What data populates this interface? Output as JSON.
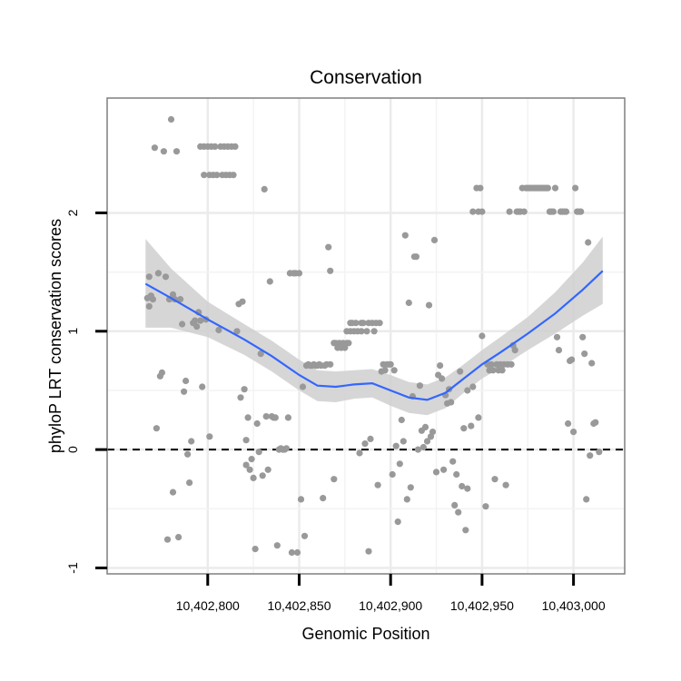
{
  "chart_data": {
    "type": "scatter",
    "title": "Conservation",
    "xlabel": "Genomic Position",
    "ylabel": "phyloP LRT conservation scores",
    "xlim": [
      10402745,
      10403028
    ],
    "ylim": [
      -1.05,
      2.97
    ],
    "x_ticks": [
      10402800,
      10402850,
      10402900,
      10402950,
      10403000
    ],
    "x_tick_labels": [
      "10,402,800",
      "10,402,850",
      "10,402,900",
      "10,402,950",
      "10,403,000"
    ],
    "y_ticks": [
      -1,
      0,
      1,
      2
    ],
    "y_tick_labels": [
      "-1",
      "0",
      "1",
      "2"
    ],
    "reference_line": {
      "y": 0,
      "style": "dashed"
    },
    "colors": {
      "points": "#999999",
      "smooth": "#3366FF",
      "ribbon": "#cfcfcf",
      "grid": "#ebebeb",
      "panel_border": "#7f7f7f",
      "ticks": "#000000"
    },
    "points": [
      [
        10402767,
        1.28
      ],
      [
        10402768,
        1.21
      ],
      [
        10402768,
        1.46
      ],
      [
        10402769,
        1.3
      ],
      [
        10402770,
        1.27
      ],
      [
        10402771,
        2.55
      ],
      [
        10402772,
        0.18
      ],
      [
        10402773,
        1.49
      ],
      [
        10402774,
        0.62
      ],
      [
        10402775,
        0.65
      ],
      [
        10402776,
        2.52
      ],
      [
        10402777,
        1.46
      ],
      [
        10402778,
        -0.76
      ],
      [
        10402779,
        1.27
      ],
      [
        10402780,
        2.79
      ],
      [
        10402781,
        1.31
      ],
      [
        10402781,
        -0.36
      ],
      [
        10402782,
        1.27
      ],
      [
        10402783,
        2.52
      ],
      [
        10402784,
        -0.74
      ],
      [
        10402785,
        1.27
      ],
      [
        10402786,
        1.06
      ],
      [
        10402787,
        0.49
      ],
      [
        10402788,
        0.58
      ],
      [
        10402789,
        -0.04
      ],
      [
        10402790,
        -0.28
      ],
      [
        10402791,
        0.07
      ],
      [
        10402792,
        1.07
      ],
      [
        10402793,
        1.09
      ],
      [
        10402794,
        1.04
      ],
      [
        10402795,
        1.16
      ],
      [
        10402796,
        2.56
      ],
      [
        10402796,
        1.09
      ],
      [
        10402797,
        0.53
      ],
      [
        10402798,
        2.56
      ],
      [
        10402798,
        2.32
      ],
      [
        10402799,
        1.1
      ],
      [
        10402800,
        2.56
      ],
      [
        10402801,
        2.32
      ],
      [
        10402801,
        0.11
      ],
      [
        10402802,
        2.56
      ],
      [
        10402803,
        2.32
      ],
      [
        10402804,
        2.56
      ],
      [
        10402805,
        2.32
      ],
      [
        10402806,
        1.01
      ],
      [
        10402807,
        2.56
      ],
      [
        10402808,
        2.32
      ],
      [
        10402809,
        2.56
      ],
      [
        10402810,
        2.32
      ],
      [
        10402811,
        2.56
      ],
      [
        10402812,
        2.32
      ],
      [
        10402813,
        2.56
      ],
      [
        10402814,
        2.32
      ],
      [
        10402815,
        2.56
      ],
      [
        10402816,
        1.0
      ],
      [
        10402817,
        1.23
      ],
      [
        10402818,
        0.44
      ],
      [
        10402819,
        1.25
      ],
      [
        10402820,
        0.51
      ],
      [
        10402821,
        0.08
      ],
      [
        10402821,
        -0.13
      ],
      [
        10402822,
        0.27
      ],
      [
        10402823,
        -0.17
      ],
      [
        10402824,
        -0.08
      ],
      [
        10402825,
        -0.24
      ],
      [
        10402826,
        -0.84
      ],
      [
        10402827,
        0.22
      ],
      [
        10402828,
        -0.02
      ],
      [
        10402829,
        0.81
      ],
      [
        10402830,
        -0.22
      ],
      [
        10402831,
        2.2
      ],
      [
        10402832,
        0.28
      ],
      [
        10402833,
        -0.17
      ],
      [
        10402834,
        1.42
      ],
      [
        10402835,
        0.28
      ],
      [
        10402836,
        0.27
      ],
      [
        10402837,
        0.27
      ],
      [
        10402838,
        -0.81
      ],
      [
        10402839,
        0.0
      ],
      [
        10402840,
        0.01
      ],
      [
        10402841,
        0.0
      ],
      [
        10402842,
        0.0
      ],
      [
        10402843,
        0.01
      ],
      [
        10402844,
        0.27
      ],
      [
        10402845,
        1.49
      ],
      [
        10402846,
        -0.87
      ],
      [
        10402847,
        1.49
      ],
      [
        10402848,
        1.49
      ],
      [
        10402849,
        -0.87
      ],
      [
        10402850,
        1.49
      ],
      [
        10402851,
        -0.42
      ],
      [
        10402852,
        0.53
      ],
      [
        10402853,
        -0.73
      ],
      [
        10402854,
        0.71
      ],
      [
        10402855,
        0.72
      ],
      [
        10402856,
        0.71
      ],
      [
        10402857,
        0.71
      ],
      [
        10402858,
        0.72
      ],
      [
        10402859,
        0.71
      ],
      [
        10402860,
        0.71
      ],
      [
        10402861,
        0.72
      ],
      [
        10402862,
        0.71
      ],
      [
        10402863,
        -0.41
      ],
      [
        10402864,
        0.71
      ],
      [
        10402865,
        0.72
      ],
      [
        10402866,
        1.71
      ],
      [
        10402867,
        1.51
      ],
      [
        10402867,
        0.72
      ],
      [
        10402869,
        -0.25
      ],
      [
        10402869,
        0.9
      ],
      [
        10402870,
        0.9
      ],
      [
        10402871,
        0.86
      ],
      [
        10402872,
        0.9
      ],
      [
        10402873,
        0.86
      ],
      [
        10402874,
        0.9
      ],
      [
        10402875,
        0.86
      ],
      [
        10402876,
        0.9
      ],
      [
        10402876,
        1.0
      ],
      [
        10402877,
        0.9
      ],
      [
        10402878,
        1.07
      ],
      [
        10402878,
        1.0
      ],
      [
        10402879,
        1.07
      ],
      [
        10402880,
        1.0
      ],
      [
        10402881,
        1.07
      ],
      [
        10402882,
        1.0
      ],
      [
        10402883,
        -0.03
      ],
      [
        10402884,
        1.07
      ],
      [
        10402884,
        1.0
      ],
      [
        10402885,
        1.07
      ],
      [
        10402886,
        0.05
      ],
      [
        10402887,
        1.0
      ],
      [
        10402888,
        1.07
      ],
      [
        10402888,
        -0.86
      ],
      [
        10402889,
        0.09
      ],
      [
        10402890,
        1.07
      ],
      [
        10402891,
        1.0
      ],
      [
        10402892,
        1.07
      ],
      [
        10402893,
        -0.3
      ],
      [
        10402894,
        1.07
      ],
      [
        10402895,
        0.66
      ],
      [
        10402896,
        0.72
      ],
      [
        10402897,
        0.67
      ],
      [
        10402898,
        0.72
      ],
      [
        10402899,
        0.72
      ],
      [
        10402900,
        0.72
      ],
      [
        10402901,
        -0.21
      ],
      [
        10402902,
        0.67
      ],
      [
        10402903,
        0.03
      ],
      [
        10402904,
        -0.61
      ],
      [
        10402905,
        -0.12
      ],
      [
        10402906,
        0.25
      ],
      [
        10402907,
        0.07
      ],
      [
        10402908,
        1.81
      ],
      [
        10402909,
        -0.42
      ],
      [
        10402910,
        1.24
      ],
      [
        10402911,
        -0.32
      ],
      [
        10402912,
        0.45
      ],
      [
        10402913,
        1.63
      ],
      [
        10402914,
        1.63
      ],
      [
        10402915,
        0.0
      ],
      [
        10402916,
        0.54
      ],
      [
        10402917,
        0.16
      ],
      [
        10402918,
        0.02
      ],
      [
        10402919,
        0.19
      ],
      [
        10402920,
        0.07
      ],
      [
        10402921,
        1.22
      ],
      [
        10402922,
        0.11
      ],
      [
        10402923,
        0.15
      ],
      [
        10402924,
        1.77
      ],
      [
        10402925,
        -0.19
      ],
      [
        10402926,
        0.63
      ],
      [
        10402927,
        0.71
      ],
      [
        10402928,
        0.6
      ],
      [
        10402929,
        -0.17
      ],
      [
        10402930,
        0.46
      ],
      [
        10402931,
        0.39
      ],
      [
        10402932,
        0.51
      ],
      [
        10402933,
        0.4
      ],
      [
        10402934,
        -0.1
      ],
      [
        10402935,
        -0.47
      ],
      [
        10402936,
        -0.21
      ],
      [
        10402937,
        -0.53
      ],
      [
        10402938,
        0.66
      ],
      [
        10402939,
        -0.31
      ],
      [
        10402940,
        0.18
      ],
      [
        10402941,
        -0.68
      ],
      [
        10402942,
        0.5
      ],
      [
        10402942,
        -0.33
      ],
      [
        10402944,
        0.2
      ],
      [
        10402945,
        2.01
      ],
      [
        10402945,
        0.53
      ],
      [
        10402947,
        2.21
      ],
      [
        10402948,
        2.01
      ],
      [
        10402948,
        0.27
      ],
      [
        10402949,
        2.21
      ],
      [
        10402950,
        2.01
      ],
      [
        10402950,
        0.96
      ],
      [
        10402952,
        -0.48
      ],
      [
        10402953,
        0.72
      ],
      [
        10402954,
        0.67
      ],
      [
        10402955,
        0.72
      ],
      [
        10402956,
        0.67
      ],
      [
        10402957,
        -0.25
      ],
      [
        10402958,
        0.72
      ],
      [
        10402959,
        0.67
      ],
      [
        10402960,
        0.72
      ],
      [
        10402961,
        0.67
      ],
      [
        10402962,
        0.72
      ],
      [
        10402963,
        -0.3
      ],
      [
        10402964,
        0.72
      ],
      [
        10402965,
        2.01
      ],
      [
        10402966,
        0.72
      ],
      [
        10402967,
        0.88
      ],
      [
        10402968,
        0.84
      ],
      [
        10402969,
        2.01
      ],
      [
        10402970,
        2.01
      ],
      [
        10402971,
        2.01
      ],
      [
        10402972,
        2.21
      ],
      [
        10402973,
        2.01
      ],
      [
        10402974,
        2.21
      ],
      [
        10402975,
        2.21
      ],
      [
        10402976,
        2.21
      ],
      [
        10402977,
        2.21
      ],
      [
        10402978,
        2.21
      ],
      [
        10402979,
        2.21
      ],
      [
        10402980,
        2.21
      ],
      [
        10402981,
        2.21
      ],
      [
        10402982,
        2.21
      ],
      [
        10402983,
        2.21
      ],
      [
        10402984,
        2.21
      ],
      [
        10402985,
        2.21
      ],
      [
        10402986,
        2.21
      ],
      [
        10402987,
        2.01
      ],
      [
        10402988,
        2.01
      ],
      [
        10402989,
        2.01
      ],
      [
        10402990,
        2.21
      ],
      [
        10402991,
        0.95
      ],
      [
        10402992,
        0.84
      ],
      [
        10402993,
        2.01
      ],
      [
        10402994,
        2.01
      ],
      [
        10402995,
        2.01
      ],
      [
        10402996,
        2.01
      ],
      [
        10402997,
        0.22
      ],
      [
        10402998,
        0.75
      ],
      [
        10402999,
        0.76
      ],
      [
        10403000,
        0.15
      ],
      [
        10403001,
        2.21
      ],
      [
        10403002,
        2.01
      ],
      [
        10403003,
        2.01
      ],
      [
        10403004,
        2.01
      ],
      [
        10403005,
        0.95
      ],
      [
        10403006,
        0.81
      ],
      [
        10403007,
        -0.42
      ],
      [
        10403008,
        1.75
      ],
      [
        10403009,
        -0.05
      ],
      [
        10403010,
        0.73
      ],
      [
        10403011,
        0.22
      ],
      [
        10403012,
        0.23
      ],
      [
        10403014,
        -0.02
      ]
    ],
    "smooth_line": [
      [
        10402766,
        1.4
      ],
      [
        10402780,
        1.28
      ],
      [
        10402800,
        1.1
      ],
      [
        10402820,
        0.93
      ],
      [
        10402835,
        0.79
      ],
      [
        10402850,
        0.63
      ],
      [
        10402860,
        0.54
      ],
      [
        10402870,
        0.53
      ],
      [
        10402880,
        0.55
      ],
      [
        10402890,
        0.56
      ],
      [
        10402900,
        0.5
      ],
      [
        10402910,
        0.44
      ],
      [
        10402920,
        0.42
      ],
      [
        10402930,
        0.48
      ],
      [
        10402940,
        0.6
      ],
      [
        10402950,
        0.72
      ],
      [
        10402960,
        0.82
      ],
      [
        10402975,
        0.98
      ],
      [
        10402990,
        1.15
      ],
      [
        10403005,
        1.35
      ],
      [
        10403016,
        1.51
      ]
    ],
    "confidence_band": [
      {
        "x": 10402766,
        "lower": 1.03,
        "upper": 1.78
      },
      {
        "x": 10402780,
        "lower": 1.03,
        "upper": 1.53
      },
      {
        "x": 10402800,
        "lower": 0.95,
        "upper": 1.25
      },
      {
        "x": 10402820,
        "lower": 0.8,
        "upper": 1.06
      },
      {
        "x": 10402835,
        "lower": 0.66,
        "upper": 0.92
      },
      {
        "x": 10402850,
        "lower": 0.5,
        "upper": 0.76
      },
      {
        "x": 10402860,
        "lower": 0.41,
        "upper": 0.67
      },
      {
        "x": 10402870,
        "lower": 0.4,
        "upper": 0.66
      },
      {
        "x": 10402880,
        "lower": 0.43,
        "upper": 0.67
      },
      {
        "x": 10402890,
        "lower": 0.44,
        "upper": 0.68
      },
      {
        "x": 10402900,
        "lower": 0.37,
        "upper": 0.63
      },
      {
        "x": 10402910,
        "lower": 0.31,
        "upper": 0.57
      },
      {
        "x": 10402920,
        "lower": 0.29,
        "upper": 0.55
      },
      {
        "x": 10402930,
        "lower": 0.35,
        "upper": 0.61
      },
      {
        "x": 10402940,
        "lower": 0.48,
        "upper": 0.72
      },
      {
        "x": 10402950,
        "lower": 0.6,
        "upper": 0.84
      },
      {
        "x": 10402960,
        "lower": 0.69,
        "upper": 0.95
      },
      {
        "x": 10402975,
        "lower": 0.84,
        "upper": 1.12
      },
      {
        "x": 10402990,
        "lower": 0.98,
        "upper": 1.33
      },
      {
        "x": 10403005,
        "lower": 1.13,
        "upper": 1.58
      },
      {
        "x": 10403016,
        "lower": 1.23,
        "upper": 1.8
      }
    ]
  }
}
